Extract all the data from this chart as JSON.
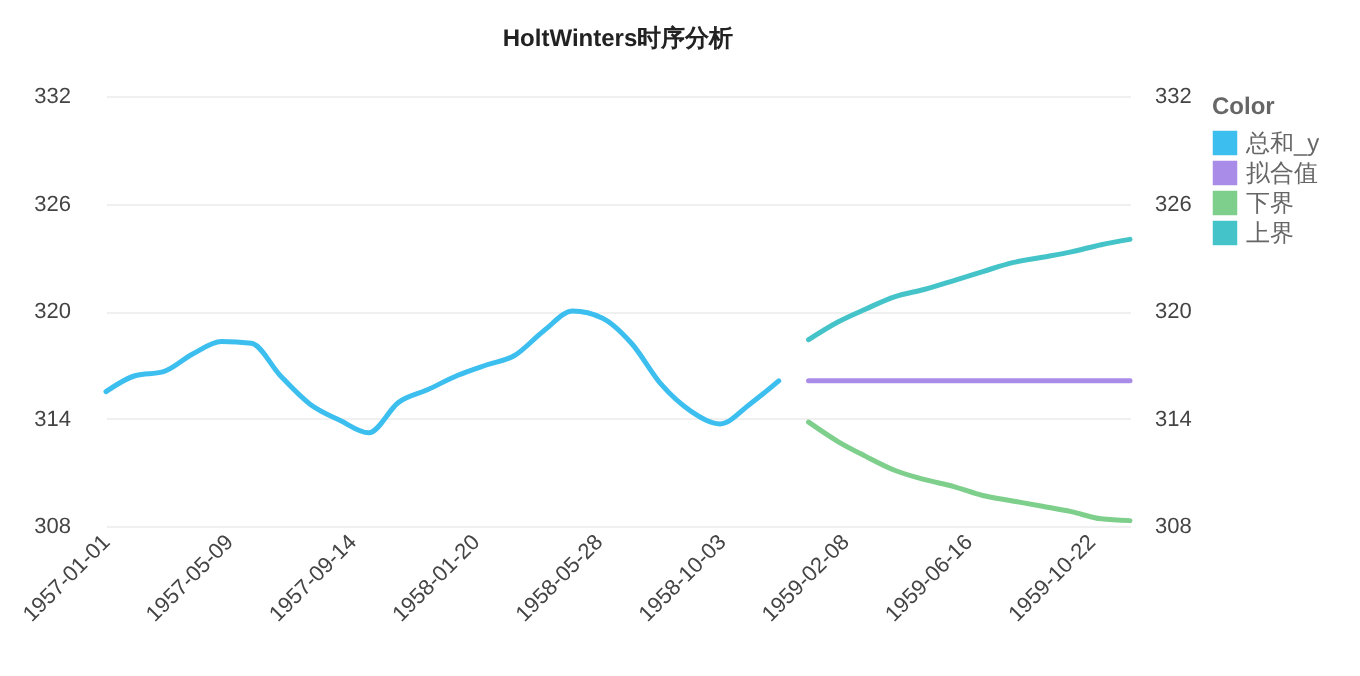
{
  "chart_data": {
    "type": "line",
    "title": "HoltWinters时序分析",
    "legend_title": "Color",
    "legend": "right",
    "grid": "y",
    "marker": "none",
    "line_style": "solid",
    "xlim": [
      "1957-01-01",
      "1959-12-01"
    ],
    "xticks": [
      "1957-01-01",
      "1957-05-09",
      "1957-09-14",
      "1958-01-20",
      "1958-05-28",
      "1958-10-03",
      "1959-02-08",
      "1959-06-16",
      "1959-10-22"
    ],
    "ylim": [
      308,
      332
    ],
    "yticks": [
      308,
      314,
      320,
      326,
      332
    ],
    "y2lim": [
      308,
      332
    ],
    "y2ticks": [
      308,
      314,
      320,
      326,
      332
    ],
    "series": [
      {
        "name": "总和_y",
        "color": "#3cbfef",
        "x": [
          "1957-01-01",
          "1957-02-01",
          "1957-03-01",
          "1957-04-01",
          "1957-05-01",
          "1957-06-01",
          "1957-07-01",
          "1957-08-01",
          "1957-09-01",
          "1957-10-01",
          "1957-11-01",
          "1957-12-01",
          "1958-01-01",
          "1958-02-01",
          "1958-03-01",
          "1958-04-01",
          "1958-05-01",
          "1958-06-01",
          "1958-07-01",
          "1958-08-01",
          "1958-09-01",
          "1958-10-01",
          "1958-11-01",
          "1958-12-01"
        ],
        "values": [
          315.5,
          316.4,
          316.6,
          317.6,
          318.3,
          318.2,
          316.4,
          314.8,
          313.9,
          313.2,
          314.9,
          315.6,
          316.4,
          317.0,
          317.5,
          318.9,
          320.0,
          319.6,
          318.2,
          315.9,
          314.4,
          313.7,
          314.8,
          316.1
        ]
      },
      {
        "name": "拟合值",
        "color": "#a98be8",
        "x": [
          "1959-01-01",
          "1959-02-01",
          "1959-03-01",
          "1959-04-01",
          "1959-05-01",
          "1959-06-01",
          "1959-07-01",
          "1959-08-01",
          "1959-09-01",
          "1959-10-01",
          "1959-11-01",
          "1959-12-01"
        ],
        "values": [
          316.1,
          316.1,
          316.1,
          316.1,
          316.1,
          316.1,
          316.1,
          316.1,
          316.1,
          316.1,
          316.1,
          316.1
        ]
      },
      {
        "name": "下界",
        "color": "#7dcf8b",
        "x": [
          "1959-01-01",
          "1959-02-01",
          "1959-03-01",
          "1959-04-01",
          "1959-05-01",
          "1959-06-01",
          "1959-07-01",
          "1959-08-01",
          "1959-09-01",
          "1959-10-01",
          "1959-11-01",
          "1959-12-01"
        ],
        "values": [
          313.8,
          312.7,
          311.9,
          311.1,
          310.6,
          310.2,
          309.7,
          309.4,
          309.1,
          308.8,
          308.4,
          308.3
        ]
      },
      {
        "name": "上界",
        "color": "#44c4c8",
        "x": [
          "1959-01-01",
          "1959-02-01",
          "1959-03-01",
          "1959-04-01",
          "1959-05-01",
          "1959-06-01",
          "1959-07-01",
          "1959-08-01",
          "1959-09-01",
          "1959-10-01",
          "1959-11-01",
          "1959-12-01"
        ],
        "values": [
          318.4,
          319.4,
          320.1,
          320.8,
          321.2,
          321.7,
          322.2,
          322.7,
          323.0,
          323.3,
          323.7,
          324.0
        ]
      }
    ]
  }
}
